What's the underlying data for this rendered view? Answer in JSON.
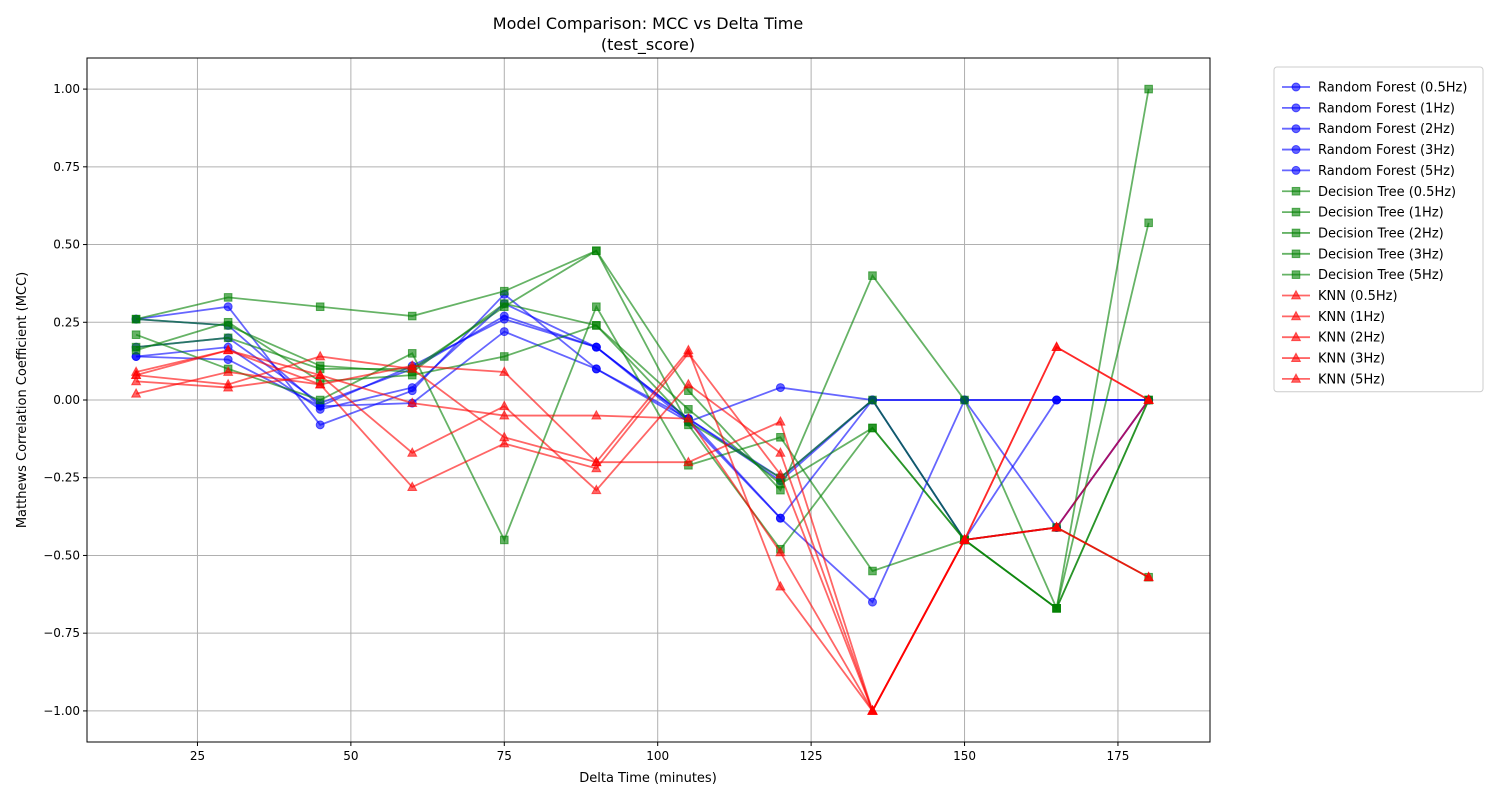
{
  "chart_data": {
    "type": "line",
    "title": "Model Comparison: MCC vs Delta Time",
    "subtitle": "(test_score)",
    "xlabel": "Delta Time (minutes)",
    "ylabel": "Matthews Correlation Coefficient (MCC)",
    "xlim": [
      7,
      190
    ],
    "ylim": [
      -1.1,
      1.1
    ],
    "xticks": [
      25,
      50,
      75,
      100,
      125,
      150,
      175
    ],
    "yticks": [
      -1.0,
      -0.75,
      -0.5,
      -0.25,
      0.0,
      0.25,
      0.5,
      0.75,
      1.0
    ],
    "grid": true,
    "legend_position": "outside-right",
    "x": [
      15,
      30,
      45,
      60,
      75,
      90,
      105,
      120,
      135,
      150,
      165,
      180
    ],
    "series": [
      {
        "name": "Random Forest (0.5Hz)",
        "color": "#0000ff",
        "marker": "circle",
        "values": [
          0.26,
          0.3,
          -0.08,
          0.03,
          0.34,
          0.1,
          -0.07,
          0.04,
          0.0,
          0.0,
          0.0,
          0.0
        ]
      },
      {
        "name": "Random Forest (1Hz)",
        "color": "#0000ff",
        "marker": "circle",
        "values": [
          0.14,
          0.13,
          -0.02,
          -0.01,
          0.22,
          0.1,
          -0.06,
          -0.25,
          0.0,
          0.0,
          -0.41,
          0.0
        ]
      },
      {
        "name": "Random Forest (2Hz)",
        "color": "#0000ff",
        "marker": "circle",
        "values": [
          0.17,
          0.2,
          -0.01,
          0.1,
          0.27,
          0.17,
          -0.06,
          -0.38,
          -0.65,
          0.0,
          0.0,
          0.0
        ]
      },
      {
        "name": "Random Forest (3Hz)",
        "color": "#0000ff",
        "marker": "circle",
        "values": [
          0.14,
          0.17,
          -0.03,
          0.04,
          0.31,
          0.17,
          -0.07,
          -0.38,
          0.0,
          -0.45,
          0.0,
          0.0
        ]
      },
      {
        "name": "Random Forest (5Hz)",
        "color": "#0000ff",
        "marker": "circle",
        "values": [
          0.26,
          0.24,
          -0.02,
          0.11,
          0.26,
          0.17,
          -0.06,
          -0.26,
          0.0,
          -0.45,
          -0.41,
          0.0
        ]
      },
      {
        "name": "Decision Tree (0.5Hz)",
        "color": "#008000",
        "marker": "square",
        "values": [
          0.26,
          0.33,
          0.3,
          0.27,
          0.35,
          0.48,
          0.03,
          -0.29,
          0.4,
          0.0,
          -0.67,
          1.0
        ]
      },
      {
        "name": "Decision Tree (1Hz)",
        "color": "#008000",
        "marker": "square",
        "values": [
          0.21,
          0.1,
          0.0,
          0.15,
          -0.45,
          0.3,
          -0.21,
          -0.12,
          -0.55,
          -0.45,
          -0.67,
          0.0
        ]
      },
      {
        "name": "Decision Tree (2Hz)",
        "color": "#008000",
        "marker": "square",
        "values": [
          0.16,
          0.25,
          0.06,
          0.08,
          0.14,
          0.24,
          -0.03,
          -0.27,
          -0.09,
          -0.45,
          -0.67,
          0.57
        ]
      },
      {
        "name": "Decision Tree (3Hz)",
        "color": "#008000",
        "marker": "square",
        "values": [
          0.17,
          0.2,
          0.1,
          0.1,
          0.3,
          0.48,
          -0.08,
          -0.48,
          -0.09,
          -0.45,
          -0.67,
          0.0
        ]
      },
      {
        "name": "Decision Tree (5Hz)",
        "color": "#008000",
        "marker": "square",
        "values": [
          0.26,
          0.24,
          0.11,
          0.09,
          0.31,
          0.24,
          -0.07,
          -0.25,
          0.0,
          -0.45,
          -0.41,
          -0.57
        ]
      },
      {
        "name": "KNN (0.5Hz)",
        "color": "#ff0000",
        "marker": "triangle",
        "values": [
          0.09,
          0.16,
          0.05,
          0.11,
          0.09,
          -0.2,
          0.16,
          -0.6,
          -1.0,
          -0.45,
          -0.41,
          -0.57
        ]
      },
      {
        "name": "KNN (1Hz)",
        "color": "#ff0000",
        "marker": "triangle",
        "values": [
          0.08,
          0.05,
          0.14,
          0.1,
          -0.12,
          -0.2,
          -0.2,
          -0.07,
          -1.0,
          -0.45,
          0.17,
          0.0
        ]
      },
      {
        "name": "KNN (2Hz)",
        "color": "#ff0000",
        "marker": "triangle",
        "values": [
          0.06,
          0.04,
          0.08,
          -0.17,
          -0.02,
          -0.29,
          0.05,
          -0.17,
          -1.0,
          -0.45,
          -0.41,
          0.0
        ]
      },
      {
        "name": "KNN (3Hz)",
        "color": "#ff0000",
        "marker": "triangle",
        "values": [
          0.02,
          0.09,
          0.05,
          -0.28,
          -0.14,
          -0.22,
          0.15,
          -0.24,
          -1.0,
          -0.45,
          0.17,
          0.0
        ]
      },
      {
        "name": "KNN (5Hz)",
        "color": "#ff0000",
        "marker": "triangle",
        "values": [
          0.08,
          0.16,
          0.08,
          -0.01,
          -0.05,
          -0.05,
          -0.06,
          -0.49,
          -1.0,
          -0.45,
          -0.41,
          -0.57
        ]
      }
    ]
  }
}
